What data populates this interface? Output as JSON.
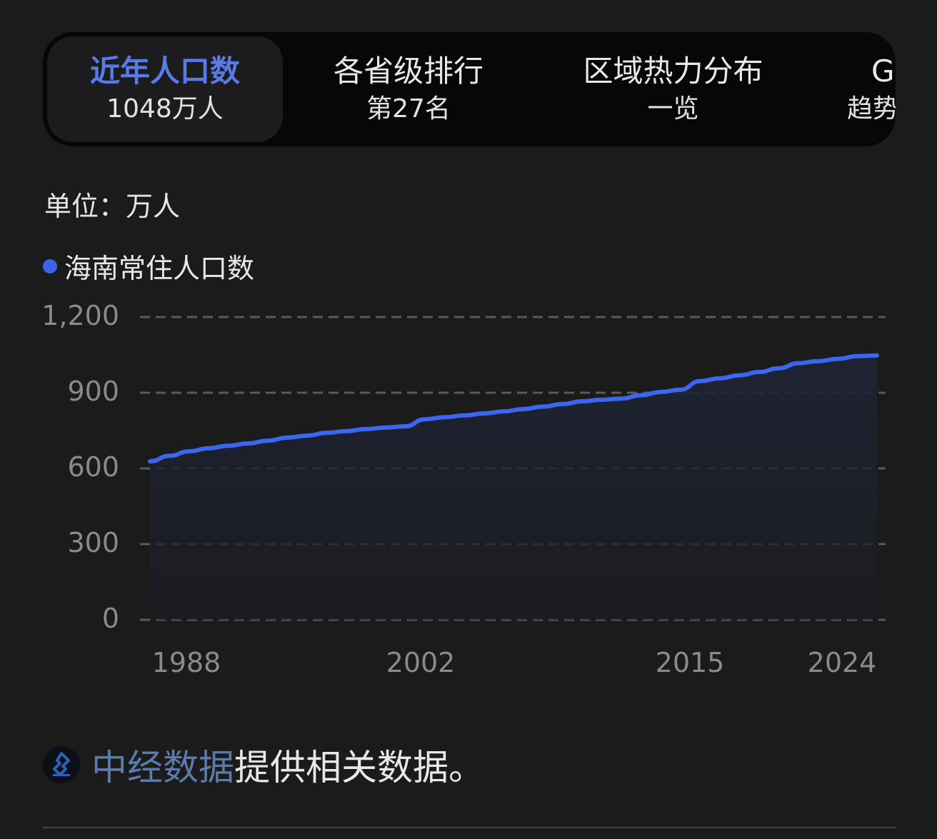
{
  "tabs": [
    {
      "title": "近年人口数",
      "sub": "1048万人",
      "active": true
    },
    {
      "title": "各省级排行",
      "sub": "第27名",
      "active": false
    },
    {
      "title": "区域热力分布",
      "sub": "一览",
      "active": false
    },
    {
      "title": "G",
      "sub": "趋势",
      "active": false
    }
  ],
  "unit_label": "单位：万人",
  "legend": {
    "label": "海南常住人口数",
    "color": "#3a63e8"
  },
  "colors": {
    "line": "#3b66f0",
    "grid": "#5a5a5a",
    "background": "#1b1b1c",
    "tabbar": "#070707",
    "active_tab_title": "#5a7ae6",
    "source_link": "#5b7bab"
  },
  "footer": {
    "source_name": "中经数据",
    "source_suffix": "提供相关数据。"
  },
  "chart_data": {
    "type": "area",
    "title": "海南常住人口数",
    "xlabel": "",
    "ylabel": "万人",
    "ylim": [
      0,
      1200
    ],
    "yticks": [
      0,
      300,
      600,
      900,
      1200
    ],
    "ytick_labels": [
      "0",
      "300",
      "600",
      "900",
      "1,200"
    ],
    "xtick_labels": [
      "1988",
      "2002",
      "2015",
      "2024"
    ],
    "grid": true,
    "legend_position": "top-left",
    "series": [
      {
        "name": "海南常住人口数",
        "x": [
          1987,
          1988,
          1989,
          1990,
          1991,
          1992,
          1993,
          1994,
          1995,
          1996,
          1997,
          1998,
          1999,
          2000,
          2001,
          2002,
          2003,
          2004,
          2005,
          2006,
          2007,
          2008,
          2009,
          2010,
          2011,
          2012,
          2013,
          2014,
          2015,
          2016,
          2017,
          2018,
          2019,
          2020,
          2021,
          2022,
          2023,
          2024
        ],
        "values": [
          628,
          650,
          668,
          680,
          690,
          699,
          710,
          722,
          730,
          741,
          748,
          756,
          762,
          767,
          795,
          803,
          810,
          818,
          826,
          835,
          845,
          855,
          866,
          872,
          877,
          890,
          903,
          912,
          946,
          957,
          969,
          982,
          997,
          1017,
          1025,
          1034,
          1045,
          1048
        ]
      }
    ]
  }
}
